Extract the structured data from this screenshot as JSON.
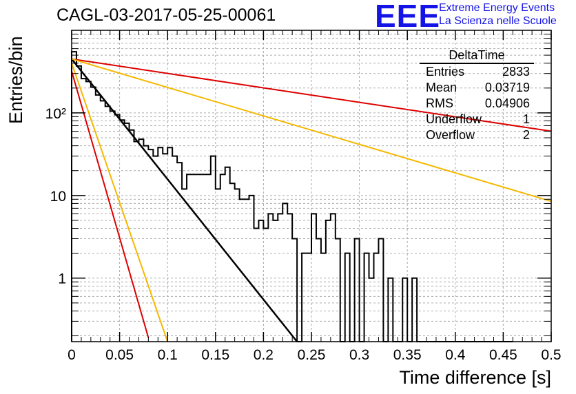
{
  "title": "CAGL-03-2017-05-25-00061",
  "logo": {
    "mark": "EEE",
    "line1": "Extreme Energy Events",
    "line2": "La Scienza nelle Scuole"
  },
  "stats": {
    "name": "DeltaTime",
    "rows": [
      {
        "label": "Entries",
        "value": "2833"
      },
      {
        "label": "Mean",
        "value": "0.03719"
      },
      {
        "label": "RMS",
        "value": "0.04906"
      },
      {
        "label": "Underflow",
        "value": "1"
      },
      {
        "label": "Overflow",
        "value": "2"
      }
    ]
  },
  "colors": {
    "histogram": "#000000",
    "fit": "#000000",
    "red_lines": "#dd0000",
    "yellow_lines": "#f5b800",
    "grid": "#aaaaaa",
    "logo": "#1414e6"
  },
  "chart_data": {
    "type": "line",
    "xlabel": "Time difference [s]",
    "ylabel": "Entries/bin",
    "xlim": [
      0,
      0.5
    ],
    "ylim": [
      0.17,
      1000
    ],
    "log_y": true,
    "grid": true,
    "x_ticks": [
      "0",
      "0.05",
      "0.1",
      "0.15",
      "0.2",
      "0.25",
      "0.3",
      "0.35",
      "0.4",
      "0.45",
      "0.5"
    ],
    "y_ticks": [
      {
        "value": 1,
        "label": "1"
      },
      {
        "value": 10,
        "label": "10"
      },
      {
        "value": 100,
        "label": "10²"
      }
    ],
    "histogram": {
      "bin_width": 0.005,
      "counts": [
        550,
        370,
        260,
        240,
        205,
        165,
        140,
        120,
        105,
        95,
        82,
        75,
        62,
        45,
        48,
        40,
        36,
        30,
        38,
        32,
        38,
        30,
        25,
        12,
        18,
        18,
        18,
        18,
        18,
        30,
        12,
        18,
        22,
        14,
        12,
        9,
        9,
        10,
        4,
        5,
        4,
        6,
        5,
        6,
        8,
        6,
        3,
        0,
        2,
        2,
        6,
        3,
        2,
        5,
        6,
        3,
        0,
        2,
        0,
        3,
        0,
        2,
        1,
        2,
        3,
        0,
        1,
        0,
        0,
        1,
        0,
        1,
        0,
        0,
        0,
        0,
        0,
        0,
        0,
        0,
        0,
        0,
        0,
        0,
        0,
        0,
        0,
        0,
        0,
        0,
        0,
        0
      ]
    },
    "lines": [
      {
        "color": "black",
        "x": [
          0,
          0.235
        ],
        "y": [
          450,
          0.17
        ]
      },
      {
        "color": "red",
        "x": [
          0,
          0.5
        ],
        "y": [
          450,
          60
        ]
      },
      {
        "color": "red",
        "x": [
          0,
          0.08
        ],
        "y": [
          320,
          0.19
        ]
      },
      {
        "color": "yellow",
        "x": [
          0,
          0.5
        ],
        "y": [
          450,
          8.5
        ]
      },
      {
        "color": "yellow",
        "x": [
          0,
          0.1
        ],
        "y": [
          400,
          0.17
        ]
      }
    ]
  }
}
